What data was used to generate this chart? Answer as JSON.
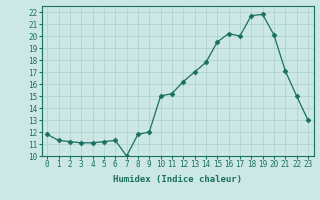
{
  "x": [
    0,
    1,
    2,
    3,
    4,
    5,
    6,
    7,
    8,
    9,
    10,
    11,
    12,
    13,
    14,
    15,
    16,
    17,
    18,
    19,
    20,
    21,
    22,
    23
  ],
  "y": [
    11.8,
    11.3,
    11.2,
    11.1,
    11.1,
    11.2,
    11.3,
    10.0,
    11.8,
    12.0,
    15.0,
    15.2,
    16.2,
    17.0,
    17.8,
    19.5,
    20.2,
    20.0,
    21.7,
    21.8,
    20.1,
    17.1,
    15.0,
    13.0
  ],
  "xlabel": "Humidex (Indice chaleur)",
  "xlim": [
    -0.5,
    23.5
  ],
  "ylim": [
    10,
    22.5
  ],
  "yticks": [
    10,
    11,
    12,
    13,
    14,
    15,
    16,
    17,
    18,
    19,
    20,
    21,
    22
  ],
  "xticks": [
    0,
    1,
    2,
    3,
    4,
    5,
    6,
    7,
    8,
    9,
    10,
    11,
    12,
    13,
    14,
    15,
    16,
    17,
    18,
    19,
    20,
    21,
    22,
    23
  ],
  "line_color": "#1a7060",
  "marker": "D",
  "marker_size": 2.5,
  "bg_color": "#cce8e4",
  "grid_color": "#b0d4cf",
  "tick_color": "#1a7060",
  "label_color": "#1a7060",
  "font_family": "monospace",
  "tick_fontsize": 5.5,
  "xlabel_fontsize": 6.5
}
